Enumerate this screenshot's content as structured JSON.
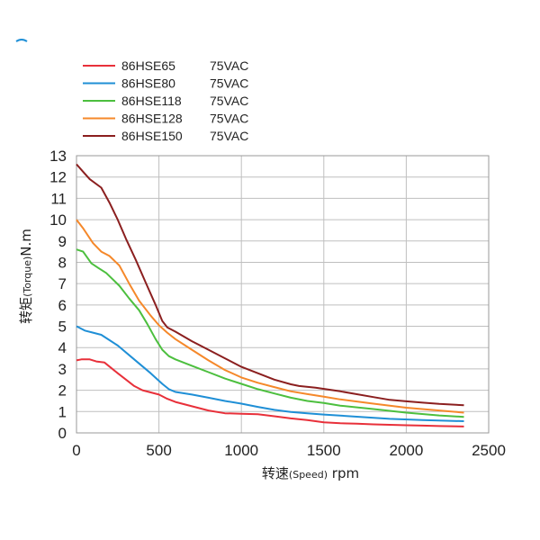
{
  "chart_data": {
    "type": "line",
    "xlabel": {
      "main": "转速",
      "small": "(Speed)",
      "unit": "rpm"
    },
    "ylabel": {
      "main": "转矩",
      "small": "(Torque)",
      "unit": "N.m"
    },
    "xlim": [
      0,
      2500
    ],
    "ylim": [
      0,
      13
    ],
    "xticks": [
      0,
      500,
      1000,
      1500,
      2000,
      2500
    ],
    "yticks": [
      0,
      1,
      2,
      3,
      4,
      5,
      6,
      7,
      8,
      9,
      10,
      11,
      12,
      13
    ],
    "grid": true,
    "legend_position": "top-left",
    "series": [
      {
        "name": "86HSE65",
        "voltage": "75VAC",
        "color": "#e8303a",
        "points": [
          [
            0,
            3.4
          ],
          [
            30,
            3.45
          ],
          [
            80,
            3.45
          ],
          [
            120,
            3.35
          ],
          [
            170,
            3.3
          ],
          [
            250,
            2.8
          ],
          [
            300,
            2.5
          ],
          [
            350,
            2.2
          ],
          [
            400,
            2.0
          ],
          [
            500,
            1.8
          ],
          [
            550,
            1.6
          ],
          [
            600,
            1.45
          ],
          [
            700,
            1.25
          ],
          [
            800,
            1.05
          ],
          [
            900,
            0.92
          ],
          [
            1000,
            0.9
          ],
          [
            1100,
            0.88
          ],
          [
            1200,
            0.78
          ],
          [
            1300,
            0.68
          ],
          [
            1400,
            0.6
          ],
          [
            1500,
            0.5
          ],
          [
            1600,
            0.45
          ],
          [
            1700,
            0.43
          ],
          [
            1800,
            0.4
          ],
          [
            1900,
            0.38
          ],
          [
            2000,
            0.36
          ],
          [
            2100,
            0.34
          ],
          [
            2200,
            0.32
          ],
          [
            2350,
            0.3
          ]
        ]
      },
      {
        "name": "86HSE80",
        "voltage": "75VAC",
        "color": "#1f8fd6",
        "points": [
          [
            0,
            5.0
          ],
          [
            50,
            4.8
          ],
          [
            100,
            4.7
          ],
          [
            150,
            4.6
          ],
          [
            250,
            4.1
          ],
          [
            350,
            3.45
          ],
          [
            450,
            2.8
          ],
          [
            520,
            2.3
          ],
          [
            560,
            2.05
          ],
          [
            600,
            1.92
          ],
          [
            700,
            1.8
          ],
          [
            800,
            1.65
          ],
          [
            900,
            1.5
          ],
          [
            1000,
            1.37
          ],
          [
            1100,
            1.22
          ],
          [
            1200,
            1.08
          ],
          [
            1300,
            0.98
          ],
          [
            1400,
            0.92
          ],
          [
            1500,
            0.86
          ],
          [
            1700,
            0.76
          ],
          [
            1900,
            0.66
          ],
          [
            2100,
            0.6
          ],
          [
            2350,
            0.55
          ]
        ]
      },
      {
        "name": "86HSE118",
        "voltage": "75VAC",
        "color": "#4cbf3e",
        "points": [
          [
            0,
            8.6
          ],
          [
            40,
            8.5
          ],
          [
            90,
            7.95
          ],
          [
            130,
            7.75
          ],
          [
            180,
            7.5
          ],
          [
            260,
            6.9
          ],
          [
            320,
            6.3
          ],
          [
            380,
            5.75
          ],
          [
            430,
            5.1
          ],
          [
            480,
            4.4
          ],
          [
            520,
            3.9
          ],
          [
            560,
            3.6
          ],
          [
            600,
            3.45
          ],
          [
            700,
            3.15
          ],
          [
            800,
            2.85
          ],
          [
            900,
            2.55
          ],
          [
            1000,
            2.3
          ],
          [
            1100,
            2.05
          ],
          [
            1200,
            1.85
          ],
          [
            1300,
            1.65
          ],
          [
            1400,
            1.5
          ],
          [
            1500,
            1.4
          ],
          [
            1600,
            1.28
          ],
          [
            1800,
            1.12
          ],
          [
            2000,
            0.95
          ],
          [
            2200,
            0.82
          ],
          [
            2350,
            0.75
          ]
        ]
      },
      {
        "name": "86HSE128",
        "voltage": "75VAC",
        "color": "#f5882a",
        "points": [
          [
            0,
            10.0
          ],
          [
            40,
            9.6
          ],
          [
            100,
            8.9
          ],
          [
            150,
            8.5
          ],
          [
            200,
            8.3
          ],
          [
            260,
            7.85
          ],
          [
            320,
            7.0
          ],
          [
            380,
            6.2
          ],
          [
            450,
            5.5
          ],
          [
            500,
            5.05
          ],
          [
            550,
            4.7
          ],
          [
            600,
            4.4
          ],
          [
            700,
            3.9
          ],
          [
            800,
            3.4
          ],
          [
            900,
            2.95
          ],
          [
            1000,
            2.6
          ],
          [
            1100,
            2.35
          ],
          [
            1200,
            2.15
          ],
          [
            1300,
            1.95
          ],
          [
            1400,
            1.82
          ],
          [
            1500,
            1.7
          ],
          [
            1600,
            1.57
          ],
          [
            1800,
            1.37
          ],
          [
            2000,
            1.18
          ],
          [
            2200,
            1.05
          ],
          [
            2350,
            0.95
          ]
        ]
      },
      {
        "name": "86HSE150",
        "voltage": "75VAC",
        "color": "#8b1f1f",
        "points": [
          [
            0,
            12.6
          ],
          [
            40,
            12.25
          ],
          [
            80,
            11.9
          ],
          [
            150,
            11.5
          ],
          [
            200,
            10.8
          ],
          [
            250,
            10.0
          ],
          [
            300,
            9.1
          ],
          [
            360,
            8.1
          ],
          [
            420,
            7.05
          ],
          [
            480,
            6.0
          ],
          [
            520,
            5.25
          ],
          [
            550,
            4.95
          ],
          [
            600,
            4.75
          ],
          [
            700,
            4.3
          ],
          [
            800,
            3.9
          ],
          [
            900,
            3.5
          ],
          [
            1000,
            3.1
          ],
          [
            1100,
            2.8
          ],
          [
            1200,
            2.5
          ],
          [
            1300,
            2.28
          ],
          [
            1350,
            2.2
          ],
          [
            1450,
            2.12
          ],
          [
            1600,
            1.95
          ],
          [
            1800,
            1.68
          ],
          [
            1900,
            1.55
          ],
          [
            2000,
            1.48
          ],
          [
            2100,
            1.42
          ],
          [
            2200,
            1.36
          ],
          [
            2350,
            1.3
          ]
        ]
      }
    ]
  }
}
